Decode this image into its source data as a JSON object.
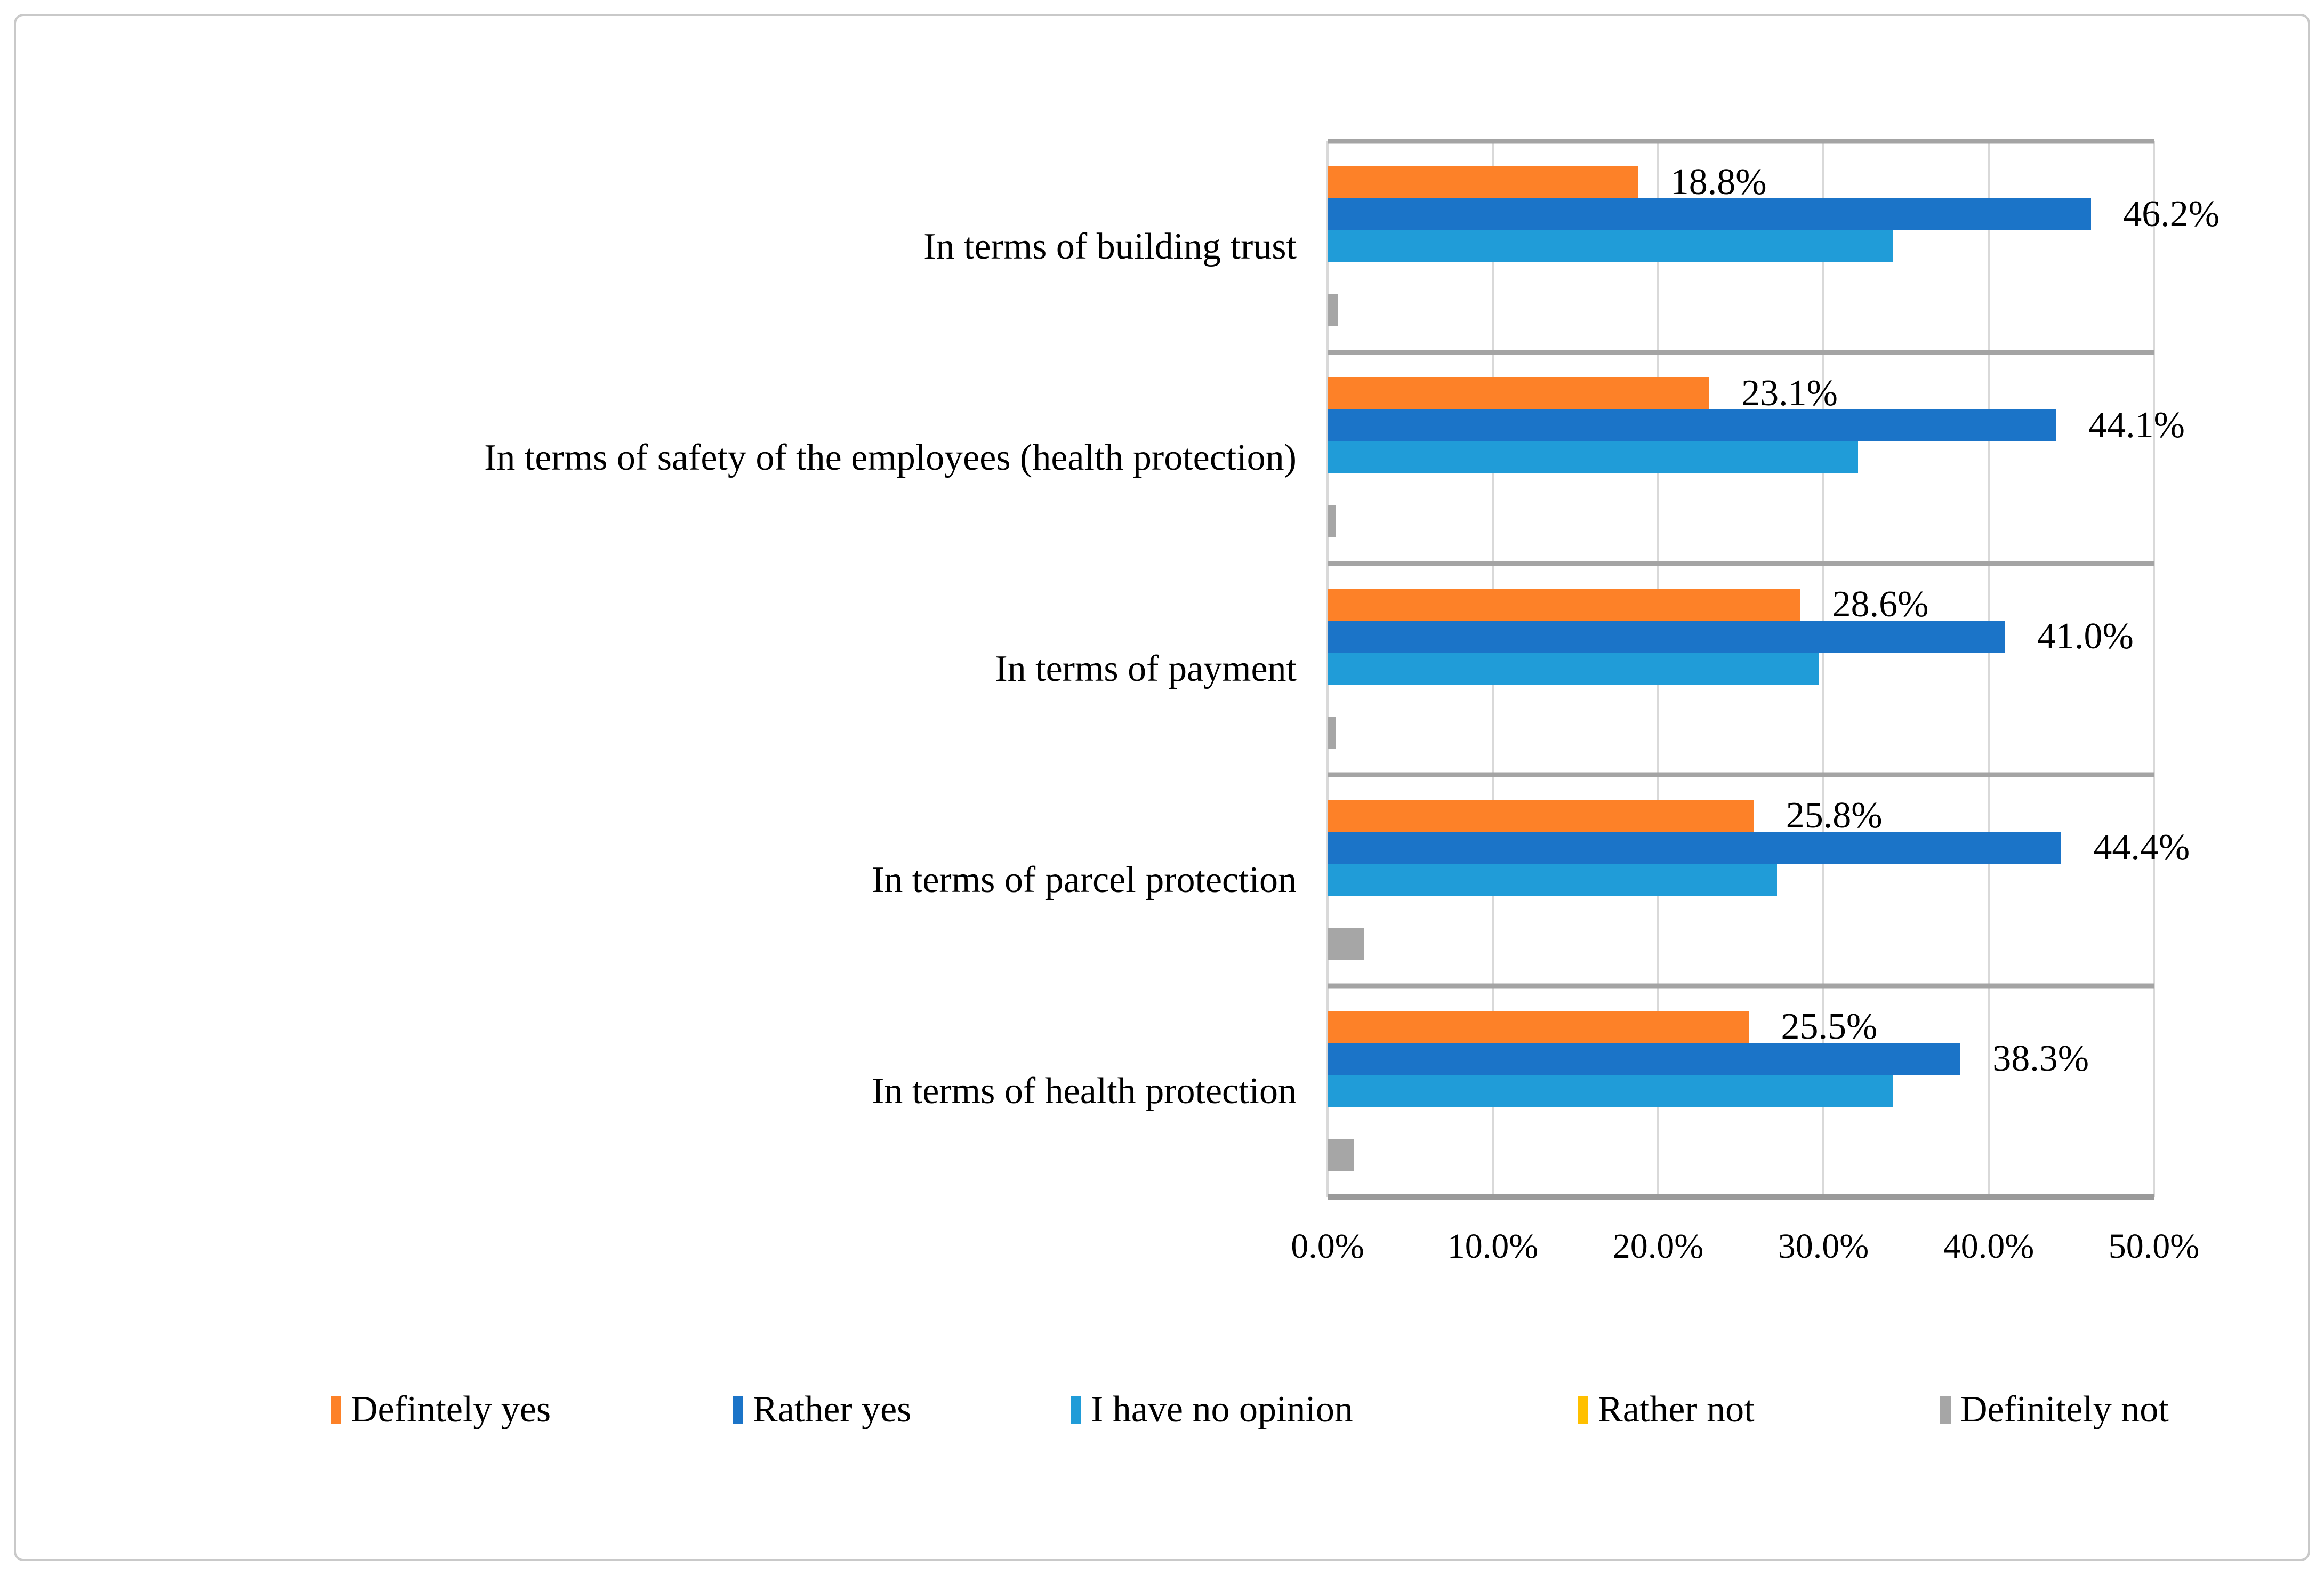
{
  "chart_data": {
    "type": "bar",
    "orientation": "horizontal",
    "title": "",
    "xlabel": "",
    "ylabel": "",
    "categories": [
      "In terms of building trust",
      "In terms of safety of the employees (health protection)",
      "In terms of payment",
      "In terms of parcel protection",
      "In terms of health protection"
    ],
    "series": [
      {
        "name": "Defintely yes",
        "color": "#FD8128",
        "values": [
          18.8,
          23.1,
          28.6,
          25.8,
          25.5
        ],
        "data_labels": [
          "18.8%",
          "23.1%",
          "28.6%",
          "25.8%",
          "25.5%"
        ]
      },
      {
        "name": "Rather yes",
        "color": "#1B74C8",
        "values": [
          46.2,
          44.1,
          41.0,
          44.4,
          38.3
        ],
        "data_labels": [
          "46.2%",
          "44.1%",
          "41.0%",
          "44.4%",
          "38.3%"
        ]
      },
      {
        "name": "I have no opinion",
        "color": "#209CD8",
        "values": [
          34.2,
          32.1,
          29.7,
          27.2,
          34.2
        ],
        "data_labels": null
      },
      {
        "name": "Rather not",
        "color": "#FFC000",
        "values": [
          0,
          0,
          0,
          0,
          0
        ],
        "data_labels": null
      },
      {
        "name": "Definitely not",
        "color": "#A6A6A6",
        "values": [
          0.6,
          0.5,
          0.5,
          2.2,
          1.6
        ],
        "data_labels": null
      }
    ],
    "x_axis": {
      "min": 0,
      "max": 50,
      "tick_step": 10,
      "ticks": [
        "0.0%",
        "10.0%",
        "20.0%",
        "30.0%",
        "40.0%",
        "50.0%"
      ]
    },
    "legend": [
      "Defintely yes",
      "Rather yes",
      "I have no opinion",
      "Rather not",
      "Definitely not"
    ],
    "legend_position": "bottom",
    "grid": true,
    "colors": {
      "gridline": "#D9D9D9",
      "separator": "#A4A4A4",
      "axis_line": "#9A9A9A",
      "frame_border": "#C9C9C9",
      "background": "#FFFFFF",
      "text": "#000000"
    }
  }
}
